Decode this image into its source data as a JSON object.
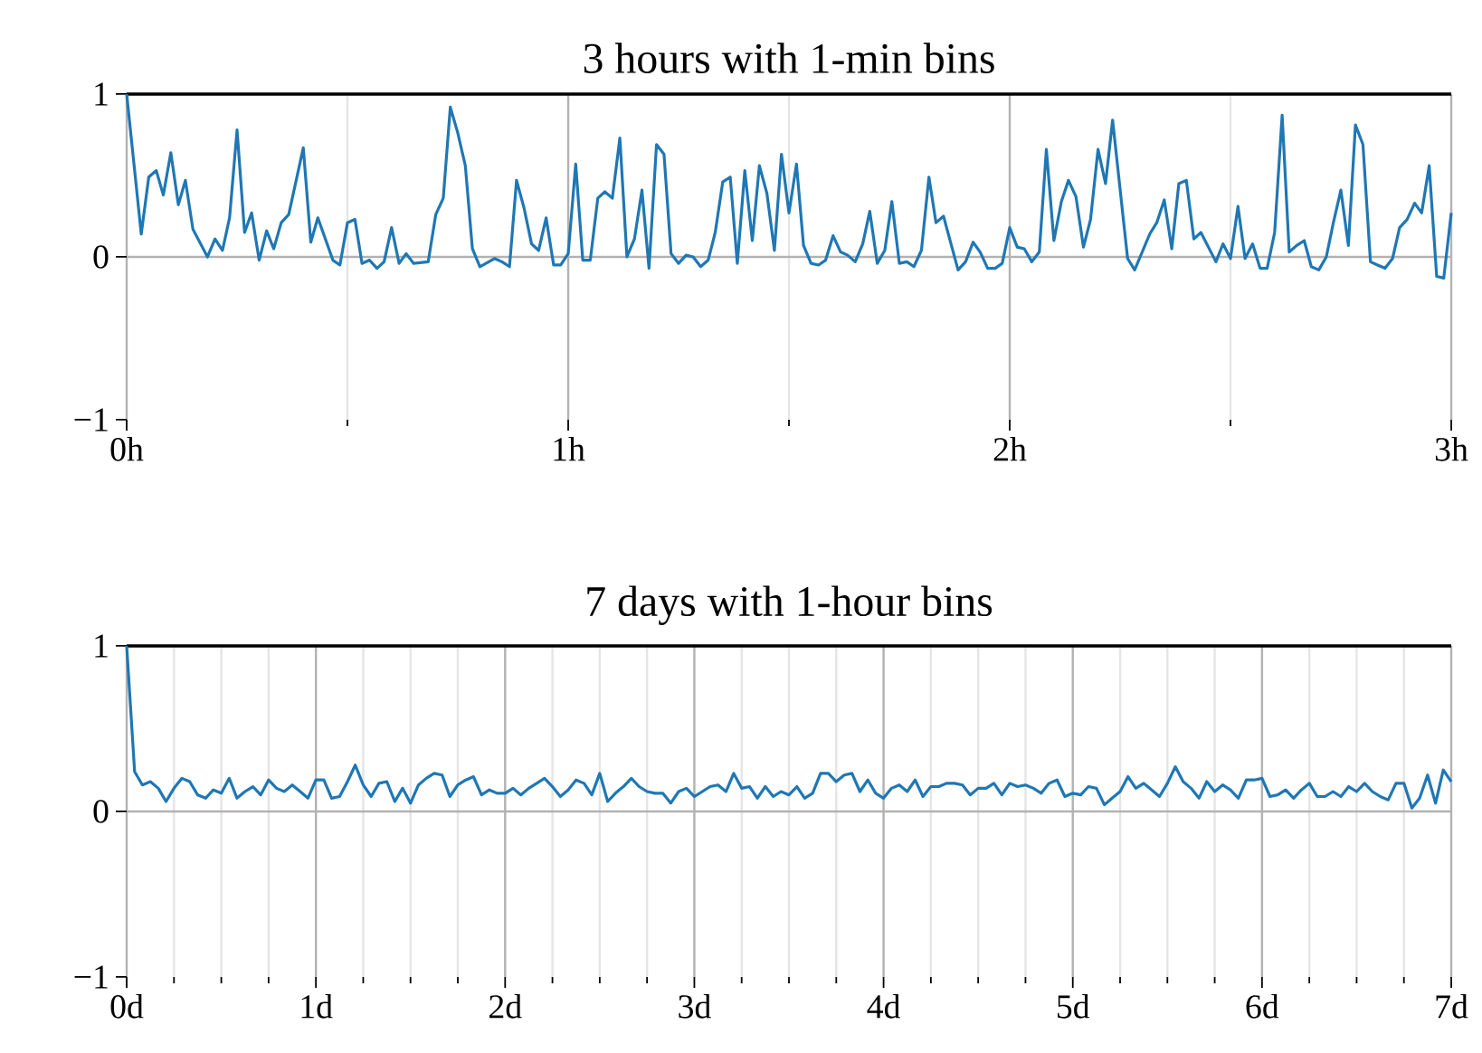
{
  "chart_data": [
    {
      "type": "line",
      "title": "3 hours with 1-min bins",
      "color": "#1f77b4",
      "x": [
        0,
        0.033,
        0.05,
        0.067,
        0.083,
        0.1,
        0.117,
        0.133,
        0.15,
        0.183,
        0.2,
        0.217,
        0.233,
        0.25,
        0.267,
        0.283,
        0.3,
        0.317,
        0.333,
        0.35,
        0.367,
        0.4,
        0.417,
        0.433,
        0.467,
        0.483,
        0.5,
        0.517,
        0.533,
        0.55,
        0.567,
        0.583,
        0.6,
        0.617,
        0.633,
        0.65,
        0.683,
        0.7,
        0.717,
        0.733,
        0.75,
        0.767,
        0.783,
        0.8,
        0.833,
        0.85,
        0.867,
        0.883,
        0.9,
        0.917,
        0.933,
        0.95,
        0.967,
        0.983,
        1,
        1.017,
        1.033,
        1.05,
        1.067,
        1.083,
        1.1,
        1.117,
        1.133,
        1.15,
        1.167,
        1.183,
        1.2,
        1.217,
        1.233,
        1.25,
        1.267,
        1.283,
        1.3,
        1.317,
        1.333,
        1.35,
        1.367,
        1.383,
        1.4,
        1.417,
        1.433,
        1.45,
        1.467,
        1.483,
        1.5,
        1.517,
        1.533,
        1.55,
        1.567,
        1.583,
        1.6,
        1.617,
        1.633,
        1.65,
        1.667,
        1.683,
        1.7,
        1.717,
        1.733,
        1.75,
        1.767,
        1.783,
        1.8,
        1.817,
        1.833,
        1.85,
        1.883,
        1.9,
        1.917,
        1.933,
        1.95,
        1.967,
        1.983,
        2,
        2.017,
        2.033,
        2.05,
        2.067,
        2.083,
        2.1,
        2.117,
        2.133,
        2.15,
        2.167,
        2.183,
        2.2,
        2.217,
        2.233,
        2.267,
        2.283,
        2.317,
        2.333,
        2.35,
        2.367,
        2.383,
        2.4,
        2.417,
        2.433,
        2.467,
        2.483,
        2.5,
        2.517,
        2.533,
        2.55,
        2.567,
        2.583,
        2.6,
        2.617,
        2.633,
        2.65,
        2.667,
        2.683,
        2.7,
        2.717,
        2.733,
        2.75,
        2.767,
        2.783,
        2.8,
        2.817,
        2.833,
        2.85,
        2.867,
        2.883,
        2.9,
        2.917,
        2.933,
        2.95,
        2.967,
        2.983,
        3
      ],
      "values": [
        1.0,
        0.14,
        0.49,
        0.53,
        0.38,
        0.64,
        0.32,
        0.47,
        0.17,
        0.0,
        0.11,
        0.04,
        0.24,
        0.78,
        0.15,
        0.27,
        -0.02,
        0.16,
        0.05,
        0.21,
        0.26,
        0.67,
        0.09,
        0.24,
        -0.02,
        -0.05,
        0.21,
        0.23,
        -0.04,
        -0.02,
        -0.07,
        -0.03,
        0.18,
        -0.04,
        0.02,
        -0.04,
        -0.03,
        0.26,
        0.36,
        0.92,
        0.76,
        0.56,
        0.05,
        -0.06,
        -0.01,
        -0.03,
        -0.06,
        0.47,
        0.3,
        0.08,
        0.04,
        0.24,
        -0.05,
        -0.05,
        0.02,
        0.57,
        -0.02,
        -0.02,
        0.36,
        0.4,
        0.36,
        0.73,
        0.0,
        0.11,
        0.41,
        -0.07,
        0.69,
        0.63,
        0.02,
        -0.04,
        0.01,
        0.0,
        -0.06,
        -0.02,
        0.15,
        0.46,
        0.49,
        -0.04,
        0.53,
        0.1,
        0.56,
        0.39,
        0.04,
        0.63,
        0.27,
        0.57,
        0.07,
        -0.04,
        -0.05,
        -0.02,
        0.13,
        0.03,
        0.01,
        -0.03,
        0.08,
        0.28,
        -0.04,
        0.04,
        0.34,
        -0.04,
        -0.03,
        -0.06,
        0.04,
        0.49,
        0.21,
        0.25,
        -0.08,
        -0.03,
        0.09,
        0.03,
        -0.07,
        -0.07,
        -0.04,
        0.18,
        0.06,
        0.05,
        -0.03,
        0.03,
        0.66,
        0.1,
        0.34,
        0.47,
        0.37,
        0.06,
        0.23,
        0.66,
        0.45,
        0.84,
        -0.01,
        -0.08,
        0.14,
        0.21,
        0.35,
        0.05,
        0.45,
        0.47,
        0.11,
        0.15,
        -0.03,
        0.08,
        -0.01,
        0.31,
        -0.01,
        0.08,
        -0.07,
        -0.07,
        0.15,
        0.87,
        0.03,
        0.07,
        0.1,
        -0.06,
        -0.08,
        0.0,
        0.21,
        0.41,
        0.07,
        0.81,
        0.69,
        -0.03,
        -0.05,
        -0.07,
        -0.01,
        0.18,
        0.23,
        0.33,
        0.27,
        0.56,
        -0.12,
        -0.13,
        0.27
      ],
      "xlim": [
        0,
        3
      ],
      "ylim": [
        -1,
        1
      ],
      "xticks": [
        {
          "value": 0,
          "label": "0h"
        },
        {
          "value": 0.5,
          "label": null
        },
        {
          "value": 1,
          "label": "1h"
        },
        {
          "value": 1.5,
          "label": null
        },
        {
          "value": 2,
          "label": "2h"
        },
        {
          "value": 2.5,
          "label": null
        },
        {
          "value": 3,
          "label": "3h"
        }
      ],
      "yticks": [
        {
          "value": -1,
          "label": "−1"
        },
        0,
        1
      ],
      "grid": "x",
      "ref_lines": [
        {
          "axis": "y",
          "value": 0
        }
      ]
    },
    {
      "type": "line",
      "title": "7 days with 1-hour bins",
      "color": "#1f77b4",
      "x": [
        0,
        0.042,
        0.083,
        0.125,
        0.167,
        0.208,
        0.25,
        0.292,
        0.333,
        0.375,
        0.417,
        0.458,
        0.5,
        0.542,
        0.583,
        0.625,
        0.667,
        0.708,
        0.75,
        0.792,
        0.833,
        0.875,
        0.917,
        0.958,
        1,
        1.042,
        1.083,
        1.125,
        1.167,
        1.208,
        1.25,
        1.292,
        1.333,
        1.375,
        1.417,
        1.458,
        1.5,
        1.542,
        1.583,
        1.625,
        1.667,
        1.708,
        1.75,
        1.792,
        1.833,
        1.875,
        1.917,
        1.958,
        2,
        2.042,
        2.083,
        2.125,
        2.167,
        2.208,
        2.25,
        2.292,
        2.333,
        2.375,
        2.417,
        2.458,
        2.5,
        2.542,
        2.583,
        2.625,
        2.667,
        2.708,
        2.75,
        2.792,
        2.833,
        2.875,
        2.917,
        2.958,
        3,
        3.042,
        3.083,
        3.125,
        3.167,
        3.208,
        3.25,
        3.292,
        3.333,
        3.375,
        3.417,
        3.458,
        3.5,
        3.542,
        3.583,
        3.625,
        3.667,
        3.708,
        3.75,
        3.792,
        3.833,
        3.875,
        3.917,
        3.958,
        4,
        4.042,
        4.083,
        4.125,
        4.167,
        4.208,
        4.25,
        4.292,
        4.333,
        4.375,
        4.417,
        4.458,
        4.5,
        4.542,
        4.583,
        4.625,
        4.667,
        4.708,
        4.75,
        4.792,
        4.833,
        4.875,
        4.917,
        4.958,
        5,
        5.042,
        5.083,
        5.125,
        5.167,
        5.208,
        5.25,
        5.292,
        5.333,
        5.375,
        5.417,
        5.458,
        5.5,
        5.542,
        5.583,
        5.625,
        5.667,
        5.708,
        5.75,
        5.792,
        5.833,
        5.875,
        5.917,
        5.958,
        6,
        6.042,
        6.083,
        6.125,
        6.167,
        6.208,
        6.25,
        6.292,
        6.333,
        6.375,
        6.417,
        6.458,
        6.5,
        6.542,
        6.583,
        6.625,
        6.667,
        6.708,
        6.75,
        6.792,
        6.833,
        6.875,
        6.917,
        6.958,
        7
      ],
      "values": [
        1.0,
        0.24,
        0.16,
        0.18,
        0.14,
        0.06,
        0.14,
        0.2,
        0.18,
        0.1,
        0.08,
        0.13,
        0.11,
        0.2,
        0.08,
        0.12,
        0.15,
        0.1,
        0.19,
        0.14,
        0.12,
        0.16,
        0.12,
        0.08,
        0.19,
        0.19,
        0.08,
        0.09,
        0.18,
        0.28,
        0.16,
        0.09,
        0.17,
        0.18,
        0.06,
        0.14,
        0.05,
        0.16,
        0.2,
        0.23,
        0.22,
        0.09,
        0.16,
        0.19,
        0.21,
        0.1,
        0.13,
        0.11,
        0.11,
        0.14,
        0.1,
        0.14,
        0.17,
        0.2,
        0.15,
        0.09,
        0.13,
        0.19,
        0.17,
        0.1,
        0.23,
        0.06,
        0.11,
        0.15,
        0.2,
        0.15,
        0.12,
        0.11,
        0.11,
        0.05,
        0.12,
        0.14,
        0.09,
        0.12,
        0.15,
        0.16,
        0.12,
        0.23,
        0.14,
        0.15,
        0.08,
        0.15,
        0.09,
        0.12,
        0.1,
        0.15,
        0.08,
        0.11,
        0.23,
        0.23,
        0.18,
        0.22,
        0.23,
        0.12,
        0.19,
        0.11,
        0.08,
        0.14,
        0.16,
        0.12,
        0.19,
        0.09,
        0.15,
        0.15,
        0.17,
        0.17,
        0.16,
        0.1,
        0.14,
        0.14,
        0.17,
        0.1,
        0.17,
        0.15,
        0.16,
        0.14,
        0.11,
        0.17,
        0.19,
        0.09,
        0.11,
        0.1,
        0.15,
        0.14,
        0.04,
        0.08,
        0.12,
        0.21,
        0.14,
        0.17,
        0.13,
        0.09,
        0.17,
        0.27,
        0.18,
        0.14,
        0.08,
        0.18,
        0.12,
        0.16,
        0.13,
        0.08,
        0.19,
        0.19,
        0.2,
        0.09,
        0.1,
        0.13,
        0.08,
        0.13,
        0.17,
        0.09,
        0.09,
        0.12,
        0.09,
        0.15,
        0.12,
        0.17,
        0.12,
        0.09,
        0.07,
        0.17,
        0.17,
        0.02,
        0.08,
        0.22,
        0.05,
        0.25,
        0.18
      ],
      "xlim": [
        0,
        7
      ],
      "ylim": [
        -1,
        1
      ],
      "xticks": [
        {
          "value": 0,
          "label": "0d"
        },
        {
          "value": 0.25,
          "label": null
        },
        {
          "value": 0.5,
          "label": null
        },
        {
          "value": 0.75,
          "label": null
        },
        {
          "value": 1,
          "label": "1d"
        },
        {
          "value": 1.25,
          "label": null
        },
        {
          "value": 1.5,
          "label": null
        },
        {
          "value": 1.75,
          "label": null
        },
        {
          "value": 2,
          "label": "2d"
        },
        {
          "value": 2.25,
          "label": null
        },
        {
          "value": 2.5,
          "label": null
        },
        {
          "value": 2.75,
          "label": null
        },
        {
          "value": 3,
          "label": "3d"
        },
        {
          "value": 3.25,
          "label": null
        },
        {
          "value": 3.5,
          "label": null
        },
        {
          "value": 3.75,
          "label": null
        },
        {
          "value": 4,
          "label": "4d"
        },
        {
          "value": 4.25,
          "label": null
        },
        {
          "value": 4.5,
          "label": null
        },
        {
          "value": 4.75,
          "label": null
        },
        {
          "value": 5,
          "label": "5d"
        },
        {
          "value": 5.25,
          "label": null
        },
        {
          "value": 5.5,
          "label": null
        },
        {
          "value": 5.75,
          "label": null
        },
        {
          "value": 6,
          "label": "6d"
        },
        {
          "value": 6.25,
          "label": null
        },
        {
          "value": 6.5,
          "label": null
        },
        {
          "value": 6.75,
          "label": null
        },
        {
          "value": 7,
          "label": "7d"
        }
      ],
      "yticks": [
        {
          "value": -1,
          "label": "−1"
        },
        0,
        1
      ],
      "grid": "x",
      "ref_lines": [
        {
          "axis": "y",
          "value": 0
        }
      ]
    }
  ]
}
